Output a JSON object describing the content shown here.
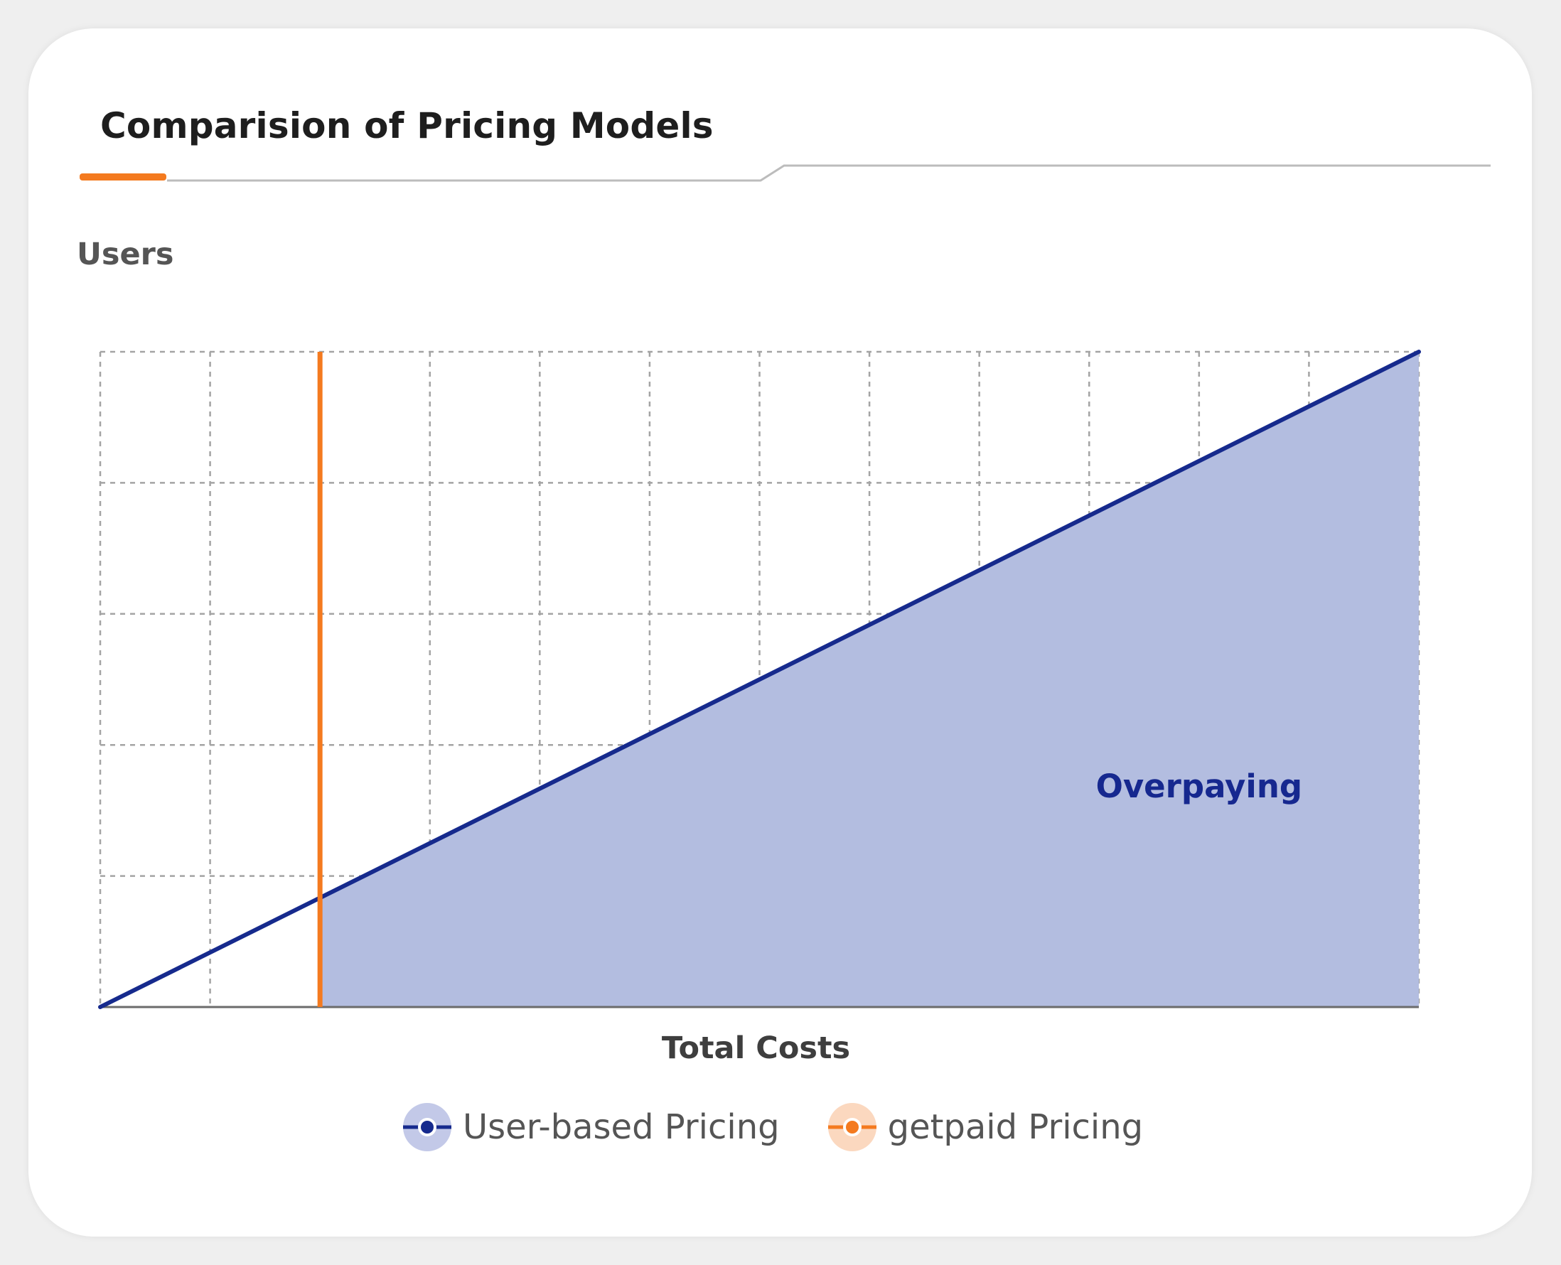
{
  "title": "Comparision of Pricing Models",
  "colors": {
    "accent": "#f47a1f",
    "series_line": "#162a8d",
    "series_fill": "#b3bde0",
    "grid": "#a4a4a4",
    "axis": "#6b6b6b"
  },
  "chart_data": {
    "type": "line",
    "xlabel": "Total Costs",
    "ylabel": "Users",
    "xlim": [
      0,
      12
    ],
    "ylim": [
      0,
      5
    ],
    "grid": true,
    "legend_placement": "bottom-center",
    "series": [
      {
        "name": "User-based Pricing",
        "x": [
          0,
          12
        ],
        "y": [
          0,
          5
        ],
        "color": "#162a8d"
      },
      {
        "name": "getpaid Pricing",
        "x": [
          2,
          2
        ],
        "y": [
          0,
          5
        ],
        "color": "#f47a1f"
      }
    ],
    "shaded_region": {
      "label": "Overpaying",
      "x_from": 2,
      "x_to": 12
    },
    "annotations": [
      {
        "text": "Overpaying",
        "x": 10,
        "y": 1.6
      }
    ]
  }
}
